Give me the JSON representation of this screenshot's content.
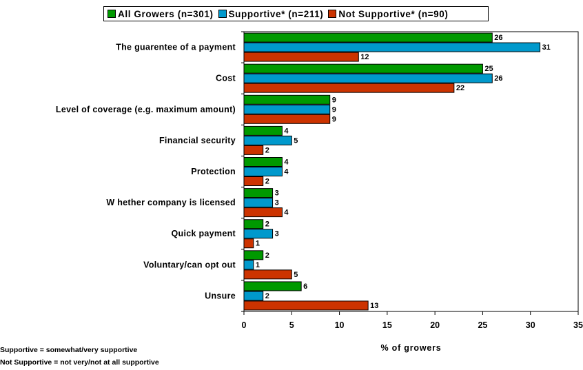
{
  "chart_data": {
    "type": "bar",
    "orientation": "horizontal",
    "categories": [
      "The guarentee of a payment",
      "Cost",
      "Level of coverage (e.g. maximum amount)",
      "Financial security",
      "Protection",
      "W hether company is licensed",
      "Quick payment",
      "Voluntary/can opt out",
      "Unsure"
    ],
    "series": [
      {
        "name": "All Growers (n=301)",
        "color": "#009900",
        "values": [
          26,
          25,
          9,
          4,
          4,
          3,
          2,
          2,
          6
        ]
      },
      {
        "name": "Supportive* (n=211)",
        "color": "#0099cc",
        "values": [
          31,
          26,
          9,
          5,
          4,
          3,
          3,
          1,
          2
        ]
      },
      {
        "name": "Not Supportive* (n=90)",
        "color": "#cc3300",
        "values": [
          12,
          22,
          9,
          2,
          2,
          4,
          1,
          5,
          13
        ]
      }
    ],
    "xlabel": "% of growers",
    "xlim": [
      0,
      35
    ],
    "xticks": [
      0,
      5,
      10,
      15,
      20,
      25,
      30,
      35
    ],
    "legend_position": "top",
    "grid": false
  },
  "footnotes": [
    "Supportive = somewhat/very supportive",
    "Not Supportive = not very/not at all supportive"
  ]
}
